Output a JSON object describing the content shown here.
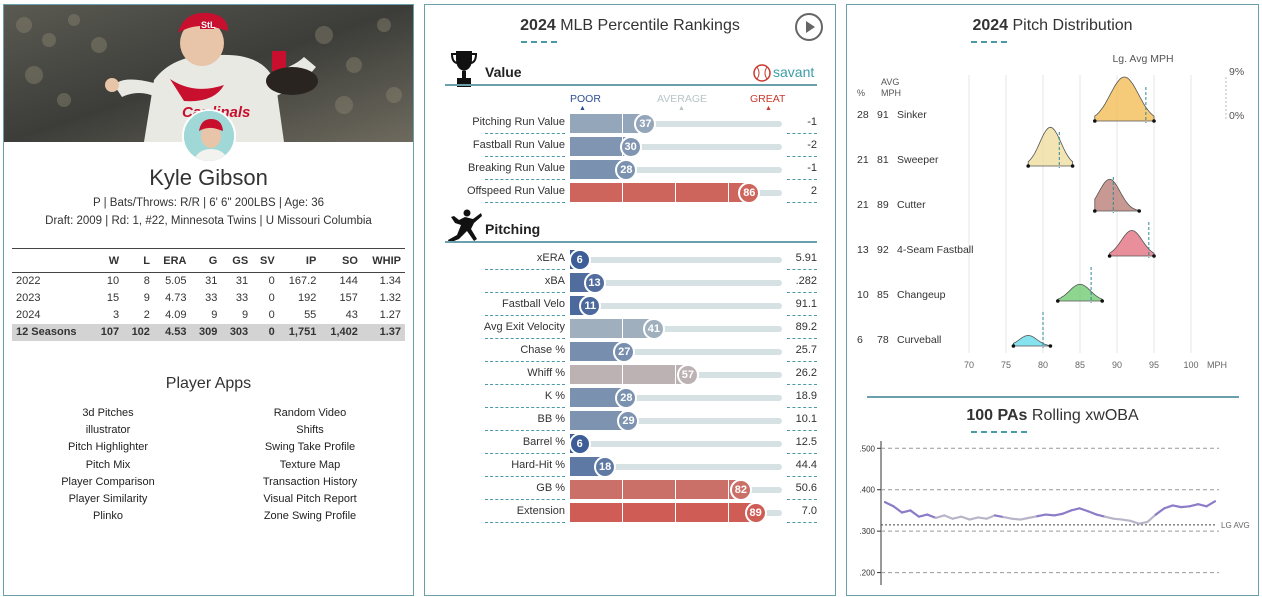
{
  "player": {
    "name": "Kyle Gibson",
    "bio_line": "P | Bats/Throws: R/R | 6' 6\" 200LBS | Age: 36",
    "draft_line": "Draft: 2009 | Rd: 1, #22, Minnesota Twins | U Missouri Columbia"
  },
  "stats_table": {
    "headers": [
      "",
      "W",
      "L",
      "ERA",
      "G",
      "GS",
      "SV",
      "IP",
      "SO",
      "WHIP"
    ],
    "rows": [
      [
        "2022",
        "10",
        "8",
        "5.05",
        "31",
        "31",
        "0",
        "167.2",
        "144",
        "1.34"
      ],
      [
        "2023",
        "15",
        "9",
        "4.73",
        "33",
        "33",
        "0",
        "192",
        "157",
        "1.32"
      ],
      [
        "2024",
        "3",
        "2",
        "4.09",
        "9",
        "9",
        "0",
        "55",
        "43",
        "1.27"
      ]
    ],
    "total": [
      "12 Seasons",
      "107",
      "102",
      "4.53",
      "309",
      "303",
      "0",
      "1,751",
      "1,402",
      "1.37"
    ]
  },
  "apps": {
    "title": "Player Apps",
    "left": [
      "3d Pitches",
      "illustrator",
      "Pitch Highlighter",
      "Pitch Mix",
      "Player Comparison",
      "Player Similarity",
      "Plinko"
    ],
    "right": [
      "Random Video",
      "Shifts",
      "Swing Take Profile",
      "Texture Map",
      "Transaction History",
      "Visual Pitch Report",
      "Zone Swing Profile"
    ]
  },
  "rankings": {
    "year": "2024",
    "title": "MLB Percentile Rankings",
    "savant": "savant",
    "scale": {
      "poor": "POOR",
      "average": "AVERAGE",
      "great": "GREAT"
    },
    "value_title": "Value",
    "value_rows": [
      {
        "label": "Pitching Run Value",
        "pct": "37",
        "value": "-1"
      },
      {
        "label": "Fastball Run Value",
        "pct": "30",
        "value": "-2"
      },
      {
        "label": "Breaking Run Value",
        "pct": "28",
        "value": "-1"
      },
      {
        "label": "Offspeed Run Value",
        "pct": "86",
        "value": "2"
      }
    ],
    "pitching_title": "Pitching",
    "pitching_rows": [
      {
        "label": "xERA",
        "pct": "6",
        "value": "5.91"
      },
      {
        "label": "xBA",
        "pct": "13",
        "value": ".282"
      },
      {
        "label": "Fastball Velo",
        "pct": "11",
        "value": "91.1"
      },
      {
        "label": "Avg Exit Velocity",
        "pct": "41",
        "value": "89.2"
      },
      {
        "label": "Chase %",
        "pct": "27",
        "value": "25.7"
      },
      {
        "label": "Whiff %",
        "pct": "57",
        "value": "26.2"
      },
      {
        "label": "K %",
        "pct": "28",
        "value": "18.9"
      },
      {
        "label": "BB %",
        "pct": "29",
        "value": "10.1"
      },
      {
        "label": "Barrel %",
        "pct": "6",
        "value": "12.5"
      },
      {
        "label": "Hard-Hit %",
        "pct": "18",
        "value": "44.4"
      },
      {
        "label": "GB %",
        "pct": "82",
        "value": "50.6"
      },
      {
        "label": "Extension",
        "pct": "89",
        "value": "7.0"
      }
    ]
  },
  "pitch_distribution": {
    "year": "2024",
    "title": "Pitch Distribution",
    "lg_avg_label": "Lg. Avg MPH",
    "col_pct": "%",
    "col_avg": "AVG",
    "col_mph": "MPH",
    "density_max": "9%",
    "density_min": "0%",
    "axis_unit": "MPH",
    "pitches": [
      {
        "pct": "28",
        "mph": "91",
        "name": "Sinker",
        "color": "#f2b84b",
        "lo": 87,
        "hi": 95,
        "peak": 1.0,
        "lg_avg": 93.9
      },
      {
        "pct": "21",
        "mph": "81",
        "name": "Sweeper",
        "color": "#eedc9a",
        "lo": 78,
        "hi": 84,
        "peak": 0.88,
        "lg_avg": 82.2
      },
      {
        "pct": "21",
        "mph": "89",
        "name": "Cutter",
        "color": "#b5776d",
        "lo": 87,
        "hi": 93,
        "peak": 0.72,
        "lg_avg": 89.5
      },
      {
        "pct": "13",
        "mph": "92",
        "name": "4-Seam Fastball",
        "color": "#e06a7a",
        "lo": 89,
        "hi": 95,
        "peak": 0.58,
        "lg_avg": 94.3
      },
      {
        "pct": "10",
        "mph": "85",
        "name": "Changeup",
        "color": "#68c76a",
        "lo": 82,
        "hi": 88,
        "peak": 0.38,
        "lg_avg": 86.5
      },
      {
        "pct": "6",
        "mph": "78",
        "name": "Curveball",
        "color": "#5fd8ea",
        "lo": 76,
        "hi": 81,
        "peak": 0.24,
        "lg_avg": 80.0
      }
    ],
    "x_ticks": [
      70,
      75,
      80,
      85,
      90,
      95,
      100
    ]
  },
  "rolling": {
    "bold": "100 PAs",
    "title": "Rolling xwOBA",
    "lg_avg_label": "LG AVG",
    "lg_avg": 0.315,
    "y_ticks": [
      ".500",
      ".400",
      ".300",
      ".200"
    ],
    "y_values": [
      0.5,
      0.4,
      0.3,
      0.2
    ],
    "ylim": [
      0.17,
      0.52
    ],
    "series": [
      0.37,
      0.36,
      0.345,
      0.35,
      0.335,
      0.34,
      0.332,
      0.338,
      0.33,
      0.335,
      0.328,
      0.333,
      0.33,
      0.338,
      0.334,
      0.33,
      0.328,
      0.332,
      0.336,
      0.34,
      0.338,
      0.342,
      0.35,
      0.355,
      0.348,
      0.34,
      0.335,
      0.33,
      0.328,
      0.325,
      0.318,
      0.322,
      0.34,
      0.355,
      0.362,
      0.358,
      0.36,
      0.365,
      0.36,
      0.372
    ]
  }
}
